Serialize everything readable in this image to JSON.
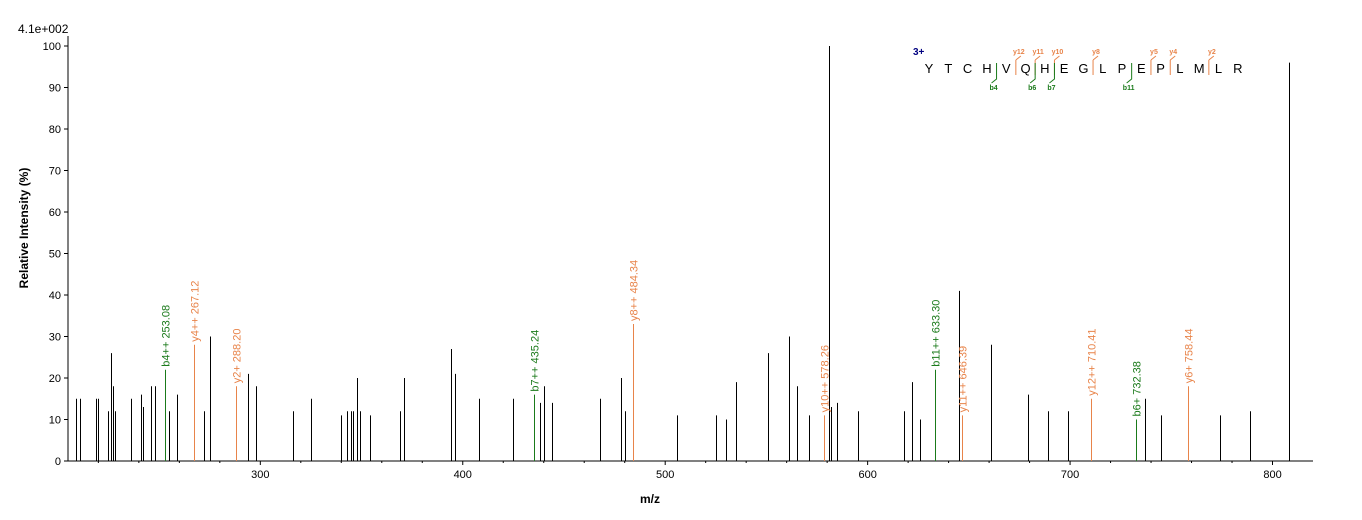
{
  "chart_data": {
    "type": "bar",
    "scale_label": "4.1e+002",
    "xlabel": "m/z",
    "ylabel": "Relative   Intensity (%)",
    "xlim": [
      205,
      820
    ],
    "ylim": [
      0,
      100
    ],
    "x_ticks": [
      300,
      400,
      500,
      600,
      700,
      800
    ],
    "y_ticks": [
      0,
      10,
      20,
      30,
      40,
      50,
      60,
      70,
      80,
      90,
      100
    ],
    "grid": false,
    "colors": {
      "other": "#000000",
      "b": "#1a7a1a",
      "y": "#e8844a",
      "charge": "#000080"
    },
    "peaks": [
      [
        209,
        15
      ],
      [
        211,
        15
      ],
      [
        219,
        15
      ],
      [
        220,
        15
      ],
      [
        225,
        12
      ],
      [
        226,
        26
      ],
      [
        227,
        18
      ],
      [
        228,
        12
      ],
      [
        236,
        15
      ],
      [
        241,
        16
      ],
      [
        242,
        13
      ],
      [
        246,
        18
      ],
      [
        248,
        18
      ],
      [
        255,
        12
      ],
      [
        259,
        16
      ],
      [
        272,
        12
      ],
      [
        275,
        30
      ],
      [
        294,
        21
      ],
      [
        298,
        18
      ],
      [
        316,
        12
      ],
      [
        325,
        15
      ],
      [
        340,
        11
      ],
      [
        343,
        12
      ],
      [
        345,
        12
      ],
      [
        346,
        12
      ],
      [
        348,
        20
      ],
      [
        349,
        12
      ],
      [
        354,
        11
      ],
      [
        369,
        12
      ],
      [
        371,
        20
      ],
      [
        394,
        27
      ],
      [
        396,
        21
      ],
      [
        408,
        15
      ],
      [
        425,
        15
      ],
      [
        438,
        14
      ],
      [
        440,
        18
      ],
      [
        444,
        14
      ],
      [
        468,
        15
      ],
      [
        478,
        20
      ],
      [
        480,
        12
      ],
      [
        506,
        11
      ],
      [
        525,
        11
      ],
      [
        530,
        10
      ],
      [
        535,
        19
      ],
      [
        551,
        26
      ],
      [
        561,
        30
      ],
      [
        565,
        18
      ],
      [
        571,
        11
      ],
      [
        581,
        100
      ],
      [
        582,
        13
      ],
      [
        585,
        14
      ],
      [
        595,
        12
      ],
      [
        618,
        12
      ],
      [
        622,
        19
      ],
      [
        626,
        10
      ],
      [
        645,
        41
      ],
      [
        661,
        28
      ],
      [
        679,
        16
      ],
      [
        689,
        12
      ],
      [
        699,
        12
      ],
      [
        737,
        15
      ],
      [
        745,
        11
      ],
      [
        774,
        11
      ],
      [
        789,
        12
      ],
      [
        808,
        96
      ]
    ],
    "annotated_peaks": [
      {
        "mz": 253.08,
        "intensity": 22,
        "ion": "b",
        "label": "b4++ 253.08"
      },
      {
        "mz": 267.12,
        "intensity": 28,
        "ion": "y",
        "label": "y4++ 267.12"
      },
      {
        "mz": 288.2,
        "intensity": 18,
        "ion": "y",
        "label": "y2+ 288.20"
      },
      {
        "mz": 435.24,
        "intensity": 16,
        "ion": "b",
        "label": "b7++ 435.24"
      },
      {
        "mz": 484.34,
        "intensity": 33,
        "ion": "y",
        "label": "y8++ 484.34"
      },
      {
        "mz": 578.26,
        "intensity": 11,
        "ion": "y",
        "label": "y10++ 578.26"
      },
      {
        "mz": 633.3,
        "intensity": 22,
        "ion": "b",
        "label": "b11++ 633.30"
      },
      {
        "mz": 646.39,
        "intensity": 11,
        "ion": "y",
        "label": "y11++ 646.39"
      },
      {
        "mz": 710.41,
        "intensity": 15,
        "ion": "y",
        "label": "y12++ 710.41"
      },
      {
        "mz": 732.38,
        "intensity": 10,
        "ion": "b",
        "label": "b6+ 732.38"
      },
      {
        "mz": 758.44,
        "intensity": 18,
        "ion": "y",
        "label": "y6+ 758.44"
      }
    ],
    "sequence": {
      "charge": "3+",
      "residues": [
        "Y",
        "T",
        "C",
        "H",
        "V",
        "Q",
        "H",
        "E",
        "G",
        "L",
        "P",
        "E",
        "P",
        "L",
        "M",
        "L",
        "R"
      ],
      "y_ions": [
        {
          "label": "y12",
          "after": 5
        },
        {
          "label": "y11",
          "after": 6
        },
        {
          "label": "y10",
          "after": 7
        },
        {
          "label": "y8",
          "after": 9
        },
        {
          "label": "y5",
          "after": 12
        },
        {
          "label": "y4",
          "after": 13
        },
        {
          "label": "y2",
          "after": 15
        }
      ],
      "b_ions": [
        {
          "label": "b4",
          "after": 4
        },
        {
          "label": "b6",
          "after": 6
        },
        {
          "label": "b7",
          "after": 7
        },
        {
          "label": "b11",
          "after": 11
        }
      ]
    }
  }
}
